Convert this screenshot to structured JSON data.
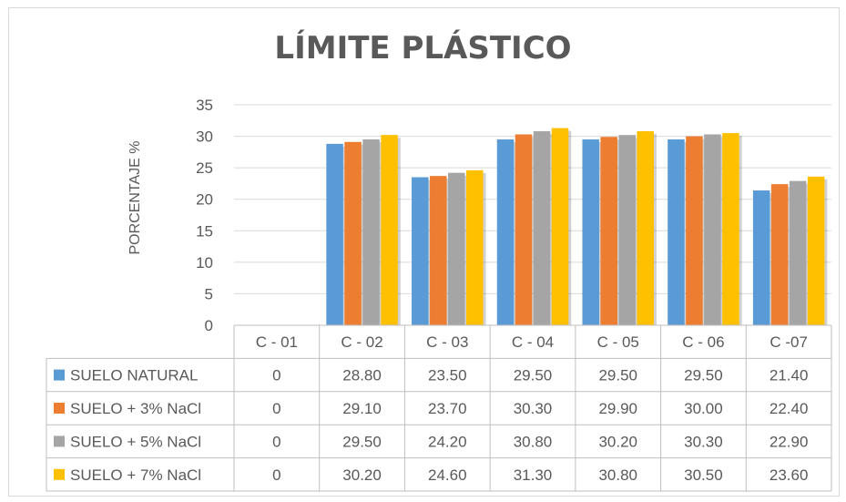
{
  "chart_data": {
    "type": "bar",
    "title": "LÍMITE PLÁSTICO",
    "ylabel": "PORCENTAJE %",
    "xlabel": "",
    "ylim": [
      0,
      35
    ],
    "yticks": [
      "0",
      "5",
      "10",
      "15",
      "20",
      "25",
      "30",
      "35"
    ],
    "grid": true,
    "legend": "data-table-left",
    "categories": [
      "C - 01",
      "C - 02",
      "C - 03",
      "C - 04",
      "C - 05",
      "C - 06",
      "C -07"
    ],
    "series": [
      {
        "name": "SUELO NATURAL",
        "color": "#5B9BD5",
        "values": [
          0,
          28.8,
          23.5,
          29.5,
          29.5,
          29.5,
          21.4
        ],
        "labels": [
          "0",
          "28.80",
          "23.50",
          "29.50",
          "29.50",
          "29.50",
          "21.40"
        ]
      },
      {
        "name": "SUELO + 3% NaCl",
        "color": "#ED7D31",
        "values": [
          0,
          29.1,
          23.7,
          30.3,
          29.9,
          30.0,
          22.4
        ],
        "labels": [
          "0",
          "29.10",
          "23.70",
          "30.30",
          "29.90",
          "30.00",
          "22.40"
        ]
      },
      {
        "name": "SUELO + 5% NaCl",
        "color": "#A5A5A5",
        "values": [
          0,
          29.5,
          24.2,
          30.8,
          30.2,
          30.3,
          22.9
        ],
        "labels": [
          "0",
          "29.50",
          "24.20",
          "30.80",
          "30.20",
          "30.30",
          "22.90"
        ]
      },
      {
        "name": "SUELO + 7% NaCl",
        "color": "#FFC000",
        "values": [
          0,
          30.2,
          24.6,
          31.3,
          30.8,
          30.5,
          23.6
        ],
        "labels": [
          "0",
          "30.20",
          "24.60",
          "31.30",
          "30.80",
          "30.50",
          "23.60"
        ]
      }
    ]
  }
}
